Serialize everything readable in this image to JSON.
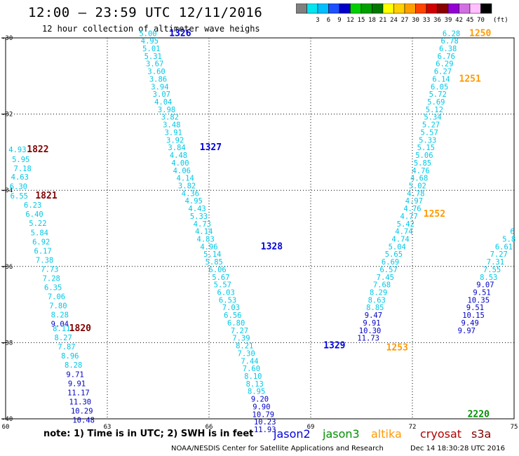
{
  "header": {
    "title": "12:00 – 23:59 UTC 12/11/2016",
    "subtitle": "12 hour collection of altimeter wave heighs"
  },
  "legend": {
    "unit_label": "(ft)",
    "bins": [
      {
        "label": "",
        "color": "#808080"
      },
      {
        "label": "3",
        "color": "#00e5ee"
      },
      {
        "label": "6",
        "color": "#00bfff"
      },
      {
        "label": "9",
        "color": "#1e50ff"
      },
      {
        "label": "12",
        "color": "#0000c8"
      },
      {
        "label": "15",
        "color": "#00d000"
      },
      {
        "label": "18",
        "color": "#00a000"
      },
      {
        "label": "21",
        "color": "#007800"
      },
      {
        "label": "24",
        "color": "#ffff00"
      },
      {
        "label": "27",
        "color": "#ffd000"
      },
      {
        "label": "30",
        "color": "#ffa000"
      },
      {
        "label": "33",
        "color": "#ff4500"
      },
      {
        "label": "36",
        "color": "#d00000"
      },
      {
        "label": "39",
        "color": "#880000"
      },
      {
        "label": "42",
        "color": "#9400d3"
      },
      {
        "label": "45",
        "color": "#d070e0"
      },
      {
        "label": "70",
        "color": "#ffc0ff"
      },
      {
        "label": "",
        "color": "#000000"
      }
    ]
  },
  "map": {
    "lat_ticks": [
      -30,
      -32,
      -34,
      -36,
      -38,
      -40
    ],
    "lon_ticks": [
      60,
      63,
      66,
      69,
      72,
      75
    ],
    "lat_labels": [
      "-30",
      "-32",
      "-34",
      "-36",
      "-38",
      "-40"
    ],
    "lon_labels": [
      "60",
      "63",
      "66",
      "69",
      "72",
      "75"
    ]
  },
  "colors": {
    "cyan": "#00c8e6",
    "blue": "#0000c8",
    "jason2": "#0000e0",
    "jason3": "#009000",
    "altika": "#ff9900",
    "cryosat": "#b00000",
    "s3a": "#800000"
  },
  "tracks": [
    {
      "name": "1822/1821/1820",
      "points": [
        {
          "lat": -33.0,
          "lon": 60.35,
          "v": "4.93"
        },
        {
          "lat": -33.26,
          "lon": 60.45,
          "v": "5.95"
        },
        {
          "lat": -33.5,
          "lon": 60.5,
          "v": "7.18"
        },
        {
          "lat": -33.72,
          "lon": 60.42,
          "v": "4.63"
        },
        {
          "lat": -33.97,
          "lon": 60.38,
          "v": "6.30"
        },
        {
          "lat": -34.22,
          "lon": 60.4,
          "v": "6.55"
        },
        {
          "lat": -34.46,
          "lon": 60.8,
          "v": "6.23"
        },
        {
          "lat": -34.7,
          "lon": 60.85,
          "v": "6.40"
        },
        {
          "lat": -34.94,
          "lon": 60.95,
          "v": "5.22"
        },
        {
          "lat": -35.18,
          "lon": 61.0,
          "v": "5.84"
        },
        {
          "lat": -35.42,
          "lon": 61.05,
          "v": "6.92"
        },
        {
          "lat": -35.66,
          "lon": 61.1,
          "v": "6.17"
        },
        {
          "lat": -35.9,
          "lon": 61.15,
          "v": "7.38"
        },
        {
          "lat": -36.14,
          "lon": 61.3,
          "v": "7.73"
        },
        {
          "lat": -36.38,
          "lon": 61.35,
          "v": "7.28"
        },
        {
          "lat": -36.62,
          "lon": 61.4,
          "v": "6.35"
        },
        {
          "lat": -36.86,
          "lon": 61.5,
          "v": "7.06"
        },
        {
          "lat": -37.1,
          "lon": 61.55,
          "v": "7.80"
        },
        {
          "lat": -37.34,
          "lon": 61.6,
          "v": "8.28"
        },
        {
          "lat": -37.58,
          "lon": 61.6,
          "v": "9.04",
          "c": "blue"
        },
        {
          "lat": -37.7,
          "lon": 61.65,
          "v": "8.11"
        },
        {
          "lat": -37.94,
          "lon": 61.7,
          "v": "8.27"
        },
        {
          "lat": -38.18,
          "lon": 61.8,
          "v": "7.87"
        },
        {
          "lat": -38.42,
          "lon": 61.9,
          "v": "8.96"
        },
        {
          "lat": -38.66,
          "lon": 62.0,
          "v": "8.28"
        },
        {
          "lat": -38.9,
          "lon": 62.05,
          "v": "9.71",
          "c": "blue"
        },
        {
          "lat": -39.14,
          "lon": 62.1,
          "v": "9.91",
          "c": "blue"
        },
        {
          "lat": -39.38,
          "lon": 62.15,
          "v": "11.17",
          "c": "blue"
        },
        {
          "lat": -39.62,
          "lon": 62.2,
          "v": "11.30",
          "c": "blue"
        },
        {
          "lat": -39.86,
          "lon": 62.25,
          "v": "10.29",
          "c": "blue"
        },
        {
          "lat": -40.1,
          "lon": 62.3,
          "v": "10.48",
          "c": "blue"
        }
      ]
    },
    {
      "name": "1326/1327/1328",
      "points": [
        {
          "lat": -29.95,
          "lon": 64.2,
          "v": "5.00"
        },
        {
          "lat": -30.15,
          "lon": 64.25,
          "v": "4.95"
        },
        {
          "lat": -30.35,
          "lon": 64.3,
          "v": "5.01"
        },
        {
          "lat": -30.55,
          "lon": 64.35,
          "v": "5.31"
        },
        {
          "lat": -30.75,
          "lon": 64.4,
          "v": "3.67"
        },
        {
          "lat": -30.95,
          "lon": 64.45,
          "v": "3.60"
        },
        {
          "lat": -31.15,
          "lon": 64.5,
          "v": "3.86"
        },
        {
          "lat": -31.35,
          "lon": 64.55,
          "v": "3.94"
        },
        {
          "lat": -31.55,
          "lon": 64.6,
          "v": "3.07"
        },
        {
          "lat": -31.75,
          "lon": 64.65,
          "v": "4.04"
        },
        {
          "lat": -31.95,
          "lon": 64.75,
          "v": "3.98"
        },
        {
          "lat": -32.15,
          "lon": 64.85,
          "v": "3.82"
        },
        {
          "lat": -32.35,
          "lon": 64.9,
          "v": "3.48"
        },
        {
          "lat": -32.55,
          "lon": 64.95,
          "v": "3.91"
        },
        {
          "lat": -32.75,
          "lon": 65.0,
          "v": "3.92"
        },
        {
          "lat": -32.95,
          "lon": 65.05,
          "v": "3.84"
        },
        {
          "lat": -33.15,
          "lon": 65.1,
          "v": "4.48"
        },
        {
          "lat": -33.35,
          "lon": 65.15,
          "v": "4.00"
        },
        {
          "lat": -33.55,
          "lon": 65.2,
          "v": "4.06"
        },
        {
          "lat": -33.75,
          "lon": 65.3,
          "v": "4.14"
        },
        {
          "lat": -33.95,
          "lon": 65.35,
          "v": "3.82"
        },
        {
          "lat": -34.15,
          "lon": 65.45,
          "v": "4.36"
        },
        {
          "lat": -34.35,
          "lon": 65.55,
          "v": "4.95"
        },
        {
          "lat": -34.55,
          "lon": 65.65,
          "v": "4.43"
        },
        {
          "lat": -34.75,
          "lon": 65.7,
          "v": "5.33"
        },
        {
          "lat": -34.95,
          "lon": 65.8,
          "v": "4.73"
        },
        {
          "lat": -35.15,
          "lon": 65.85,
          "v": "4.14"
        },
        {
          "lat": -35.35,
          "lon": 65.9,
          "v": "4.83"
        },
        {
          "lat": -35.55,
          "lon": 66.0,
          "v": "4.96"
        },
        {
          "lat": -35.75,
          "lon": 66.1,
          "v": "5.14"
        },
        {
          "lat": -35.95,
          "lon": 66.15,
          "v": "5.85"
        },
        {
          "lat": -36.15,
          "lon": 66.25,
          "v": "6.06"
        },
        {
          "lat": -36.35,
          "lon": 66.35,
          "v": "5.67"
        },
        {
          "lat": -36.55,
          "lon": 66.4,
          "v": "5.57"
        },
        {
          "lat": -36.75,
          "lon": 66.5,
          "v": "6.03"
        },
        {
          "lat": -36.95,
          "lon": 66.55,
          "v": "6.53"
        },
        {
          "lat": -37.15,
          "lon": 66.65,
          "v": "7.03"
        },
        {
          "lat": -37.35,
          "lon": 66.7,
          "v": "6.56"
        },
        {
          "lat": -37.55,
          "lon": 66.8,
          "v": "6.80"
        },
        {
          "lat": -37.75,
          "lon": 66.9,
          "v": "7.27"
        },
        {
          "lat": -37.95,
          "lon": 66.95,
          "v": "7.39"
        },
        {
          "lat": -38.15,
          "lon": 67.05,
          "v": "8.21"
        },
        {
          "lat": -38.35,
          "lon": 67.1,
          "v": "7.30"
        },
        {
          "lat": -38.55,
          "lon": 67.2,
          "v": "7.44"
        },
        {
          "lat": -38.75,
          "lon": 67.25,
          "v": "7.60"
        },
        {
          "lat": -38.95,
          "lon": 67.3,
          "v": "8.10"
        },
        {
          "lat": -39.15,
          "lon": 67.35,
          "v": "8.13"
        },
        {
          "lat": -39.35,
          "lon": 67.4,
          "v": "8.95"
        },
        {
          "lat": -39.55,
          "lon": 67.5,
          "v": "9.20",
          "c": "blue"
        },
        {
          "lat": -39.75,
          "lon": 67.55,
          "v": "9.90",
          "c": "blue"
        },
        {
          "lat": -39.95,
          "lon": 67.6,
          "v": "10.79",
          "c": "blue"
        },
        {
          "lat": -40.15,
          "lon": 67.65,
          "v": "10.23",
          "c": "blue"
        },
        {
          "lat": -40.35,
          "lon": 67.65,
          "v": "11.93",
          "c": "blue"
        }
      ]
    },
    {
      "name": "1250/1251/1252/1253",
      "points": [
        {
          "lat": -29.95,
          "lon": 73.15,
          "v": "6.28"
        },
        {
          "lat": -30.15,
          "lon": 73.1,
          "v": "6.78"
        },
        {
          "lat": -30.35,
          "lon": 73.05,
          "v": "6.38"
        },
        {
          "lat": -30.55,
          "lon": 73.0,
          "v": "6.76"
        },
        {
          "lat": -30.75,
          "lon": 72.95,
          "v": "6.29"
        },
        {
          "lat": -30.95,
          "lon": 72.9,
          "v": "6.27"
        },
        {
          "lat": -31.15,
          "lon": 72.85,
          "v": "6.14"
        },
        {
          "lat": -31.35,
          "lon": 72.8,
          "v": "6.05"
        },
        {
          "lat": -31.55,
          "lon": 72.75,
          "v": "5.72"
        },
        {
          "lat": -31.75,
          "lon": 72.7,
          "v": "5.69"
        },
        {
          "lat": -31.95,
          "lon": 72.65,
          "v": "5.12"
        },
        {
          "lat": -32.15,
          "lon": 72.6,
          "v": "5.34"
        },
        {
          "lat": -32.35,
          "lon": 72.55,
          "v": "5.27"
        },
        {
          "lat": -32.55,
          "lon": 72.5,
          "v": "5.57"
        },
        {
          "lat": -32.75,
          "lon": 72.45,
          "v": "5.33"
        },
        {
          "lat": -32.95,
          "lon": 72.4,
          "v": "5.15"
        },
        {
          "lat": -33.15,
          "lon": 72.35,
          "v": "5.06"
        },
        {
          "lat": -33.35,
          "lon": 72.3,
          "v": "5.85"
        },
        {
          "lat": -33.55,
          "lon": 72.25,
          "v": "4.76"
        },
        {
          "lat": -33.75,
          "lon": 72.2,
          "v": "4.68"
        },
        {
          "lat": -33.95,
          "lon": 72.15,
          "v": "5.02"
        },
        {
          "lat": -34.15,
          "lon": 72.1,
          "v": "4.78"
        },
        {
          "lat": -34.35,
          "lon": 72.05,
          "v": "4.97"
        },
        {
          "lat": -34.55,
          "lon": 72.0,
          "v": "4.76"
        },
        {
          "lat": -34.75,
          "lon": 71.9,
          "v": "4.77"
        },
        {
          "lat": -34.95,
          "lon": 71.8,
          "v": "5.42"
        },
        {
          "lat": -35.15,
          "lon": 71.75,
          "v": "4.74"
        },
        {
          "lat": -35.35,
          "lon": 71.65,
          "v": "4.74"
        },
        {
          "lat": -35.55,
          "lon": 71.55,
          "v": "5.04"
        },
        {
          "lat": -35.75,
          "lon": 71.45,
          "v": "5.65"
        },
        {
          "lat": -35.95,
          "lon": 71.35,
          "v": "6.69"
        },
        {
          "lat": -36.15,
          "lon": 71.3,
          "v": "6.57"
        },
        {
          "lat": -36.35,
          "lon": 71.2,
          "v": "7.45"
        },
        {
          "lat": -36.55,
          "lon": 71.1,
          "v": "7.68"
        },
        {
          "lat": -36.75,
          "lon": 71.0,
          "v": "8.29"
        },
        {
          "lat": -36.95,
          "lon": 70.95,
          "v": "8.63"
        },
        {
          "lat": -37.15,
          "lon": 70.9,
          "v": "8.85"
        },
        {
          "lat": -37.35,
          "lon": 70.85,
          "v": "9.47",
          "c": "blue"
        },
        {
          "lat": -37.55,
          "lon": 70.8,
          "v": "9.91",
          "c": "blue"
        },
        {
          "lat": -37.75,
          "lon": 70.75,
          "v": "10.30",
          "c": "blue"
        },
        {
          "lat": -37.95,
          "lon": 70.7,
          "v": "11.73",
          "c": "blue"
        }
      ]
    },
    {
      "name": "2220",
      "points": [
        {
          "lat": -35.15,
          "lon": 74.95,
          "v": "6"
        },
        {
          "lat": -35.35,
          "lon": 74.85,
          "v": "5.8"
        },
        {
          "lat": -35.55,
          "lon": 74.7,
          "v": "6.61"
        },
        {
          "lat": -35.75,
          "lon": 74.55,
          "v": "7.27"
        },
        {
          "lat": -35.95,
          "lon": 74.45,
          "v": "7.31"
        },
        {
          "lat": -36.15,
          "lon": 74.35,
          "v": "7.55"
        },
        {
          "lat": -36.35,
          "lon": 74.25,
          "v": "8.53"
        },
        {
          "lat": -36.55,
          "lon": 74.15,
          "v": "9.07",
          "c": "blue"
        },
        {
          "lat": -36.75,
          "lon": 74.05,
          "v": "9.51",
          "c": "blue"
        },
        {
          "lat": -36.95,
          "lon": 73.95,
          "v": "10.35",
          "c": "blue"
        },
        {
          "lat": -37.15,
          "lon": 73.85,
          "v": "9.51",
          "c": "blue"
        },
        {
          "lat": -37.35,
          "lon": 73.8,
          "v": "10.15",
          "c": "blue"
        },
        {
          "lat": -37.55,
          "lon": 73.7,
          "v": "9.49",
          "c": "blue"
        },
        {
          "lat": -37.75,
          "lon": 73.6,
          "v": "9.97",
          "c": "blue"
        }
      ]
    }
  ],
  "pass_labels": [
    {
      "text": "1822",
      "lat": -33.0,
      "lon": 60.95,
      "c": "s3a"
    },
    {
      "text": "1821",
      "lat": -34.22,
      "lon": 61.2,
      "c": "s3a"
    },
    {
      "text": "1820",
      "lat": -37.7,
      "lon": 62.2,
      "c": "s3a"
    },
    {
      "text": "1326",
      "lat": -29.95,
      "lon": 65.15,
      "c": "jason2"
    },
    {
      "text": "1327",
      "lat": -32.95,
      "lon": 66.05,
      "c": "jason2"
    },
    {
      "text": "1328",
      "lat": -35.55,
      "lon": 67.85,
      "c": "jason2"
    },
    {
      "text": "1329",
      "lat": -38.15,
      "lon": 69.7,
      "c": "jason2"
    },
    {
      "text": "1250",
      "lat": -29.95,
      "lon": 74.0,
      "c": "altika"
    },
    {
      "text": "1251",
      "lat": -31.15,
      "lon": 73.7,
      "c": "altika"
    },
    {
      "text": "1252",
      "lat": -34.7,
      "lon": 72.65,
      "c": "altika"
    },
    {
      "text": "1253",
      "lat": -38.2,
      "lon": 71.55,
      "c": "altika"
    },
    {
      "text": "2220",
      "lat": -39.95,
      "lon": 73.95,
      "c": "jason3"
    }
  ],
  "footer": {
    "note": "note: 1) Time is in UTC; 2) SWH is in feet",
    "satellites": [
      {
        "name": "jason2",
        "color_key": "jason2"
      },
      {
        "name": "jason3",
        "color_key": "jason3"
      },
      {
        "name": "altika",
        "color_key": "altika"
      },
      {
        "name": "cryosat",
        "color_key": "cryosat"
      },
      {
        "name": "s3a",
        "color_key": "s3a"
      }
    ],
    "credit": "NOAA/NESDIS Center for Satellite Applications and Research",
    "stamp": "Dec 14 18:30:28 UTC 2016"
  }
}
